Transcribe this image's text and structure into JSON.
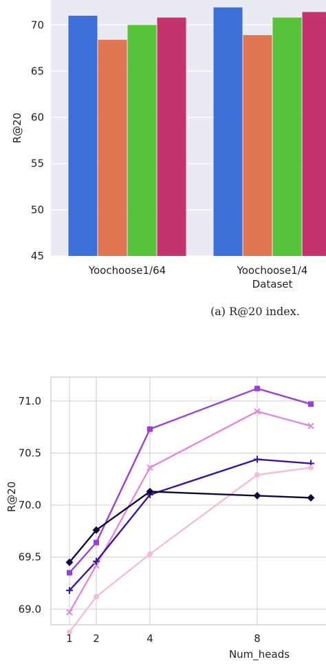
{
  "chart_data": [
    {
      "type": "bar",
      "xlabel": "Dataset",
      "ylabel": "R@20",
      "ylim": [
        45,
        72.7
      ],
      "yticks": [
        "45",
        "50",
        "55",
        "60",
        "65",
        "70"
      ],
      "categories": [
        "Yoochoose1/64",
        "Yoochoose1/4"
      ],
      "grid": "horizontal",
      "caption": "(a)  R@20 index.",
      "series": [
        {
          "color": "#3c6fd8",
          "values": [
            71.0,
            71.9
          ]
        },
        {
          "color": "#e07652",
          "values": [
            68.4,
            68.9
          ]
        },
        {
          "color": "#58c23a",
          "values": [
            70.0,
            70.8
          ]
        },
        {
          "color": "#c4346c",
          "values": [
            70.8,
            71.4
          ]
        }
      ]
    },
    {
      "type": "line",
      "xlabel": "Num_heads",
      "ylabel": "R@20",
      "ylim": [
        68.85,
        71.23
      ],
      "yticks": [
        "69.0",
        "69.5",
        "70.0",
        "70.5",
        "71.0"
      ],
      "xticks": [
        "1",
        "2",
        "4",
        "8"
      ],
      "x": [
        1,
        2,
        4,
        8,
        10
      ],
      "grid": "both",
      "series": [
        {
          "color": "#9b3fd6",
          "marker": "square",
          "values": [
            69.35,
            69.64,
            70.73,
            71.12,
            70.97
          ]
        },
        {
          "color": "#e089d6",
          "marker": "x",
          "values": [
            68.97,
            69.42,
            70.36,
            70.9,
            70.76
          ]
        },
        {
          "color": "#3a1599",
          "marker": "plus",
          "values": [
            69.18,
            69.46,
            70.1,
            70.44,
            70.4
          ]
        },
        {
          "color": "#f4bcd8",
          "marker": "circle",
          "values": [
            68.78,
            69.12,
            69.53,
            70.29,
            70.36
          ]
        },
        {
          "color": "#0c0c3a",
          "marker": "diamond",
          "values": [
            69.45,
            69.76,
            70.13,
            70.09,
            70.07
          ]
        }
      ]
    }
  ]
}
